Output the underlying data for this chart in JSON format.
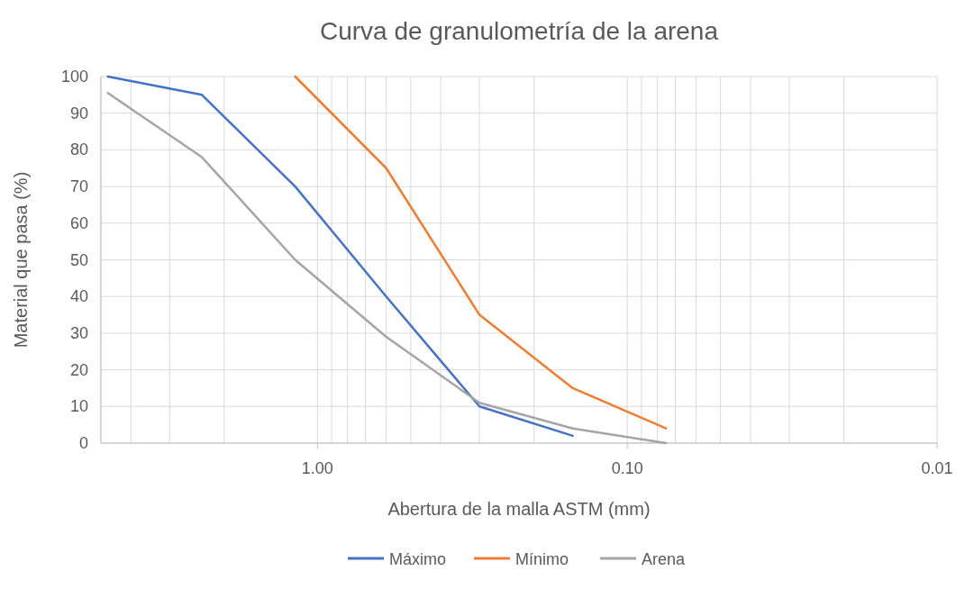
{
  "chart_data": {
    "type": "line",
    "title": "Curva de granulometría de la arena",
    "xlabel": "Abertura de la malla ASTM (mm)",
    "ylabel": "Material que pasa (%)",
    "log": "x",
    "xlim": [
      5,
      0.01
    ],
    "xticks": [
      {
        "value": 5,
        "label": null
      },
      {
        "value": 4,
        "label": null
      },
      {
        "value": 3,
        "label": null
      },
      {
        "value": 2,
        "label": null
      },
      {
        "value": 1,
        "label": "1.00"
      },
      {
        "value": 0.9,
        "label": null
      },
      {
        "value": 0.8,
        "label": null
      },
      {
        "value": 0.7,
        "label": null
      },
      {
        "value": 0.6,
        "label": null
      },
      {
        "value": 0.5,
        "label": null
      },
      {
        "value": 0.4,
        "label": null
      },
      {
        "value": 0.3,
        "label": null
      },
      {
        "value": 0.2,
        "label": null
      },
      {
        "value": 0.1,
        "label": "0.10"
      },
      {
        "value": 0.09,
        "label": null
      },
      {
        "value": 0.08,
        "label": null
      },
      {
        "value": 0.07,
        "label": null
      },
      {
        "value": 0.06,
        "label": null
      },
      {
        "value": 0.05,
        "label": null
      },
      {
        "value": 0.04,
        "label": null
      },
      {
        "value": 0.03,
        "label": null
      },
      {
        "value": 0.02,
        "label": null
      },
      {
        "value": 0.01,
        "label": "0.01"
      }
    ],
    "ylim": [
      0,
      100
    ],
    "yticks": [
      0,
      10,
      20,
      30,
      40,
      50,
      60,
      70,
      80,
      90,
      100
    ],
    "grid": true,
    "legend": "bottom",
    "marker": "none",
    "line_style": "solid",
    "series": [
      {
        "name": "Máximo",
        "color": "#4472c4",
        "x": [
          4.75,
          2.36,
          1.18,
          0.6,
          0.3,
          0.15
        ],
        "values": [
          100,
          95,
          70,
          40,
          10,
          2
        ]
      },
      {
        "name": "Mínimo",
        "color": "#ed7d31",
        "x": [
          1.18,
          0.6,
          0.3,
          0.15,
          0.075
        ],
        "values": [
          100,
          75,
          35,
          15,
          4
        ]
      },
      {
        "name": "Arena",
        "color": "#a5a5a5",
        "x": [
          4.75,
          2.36,
          1.18,
          0.6,
          0.3,
          0.15,
          0.075
        ],
        "values": [
          95.5,
          78,
          50,
          29,
          11,
          4,
          0
        ]
      }
    ]
  }
}
